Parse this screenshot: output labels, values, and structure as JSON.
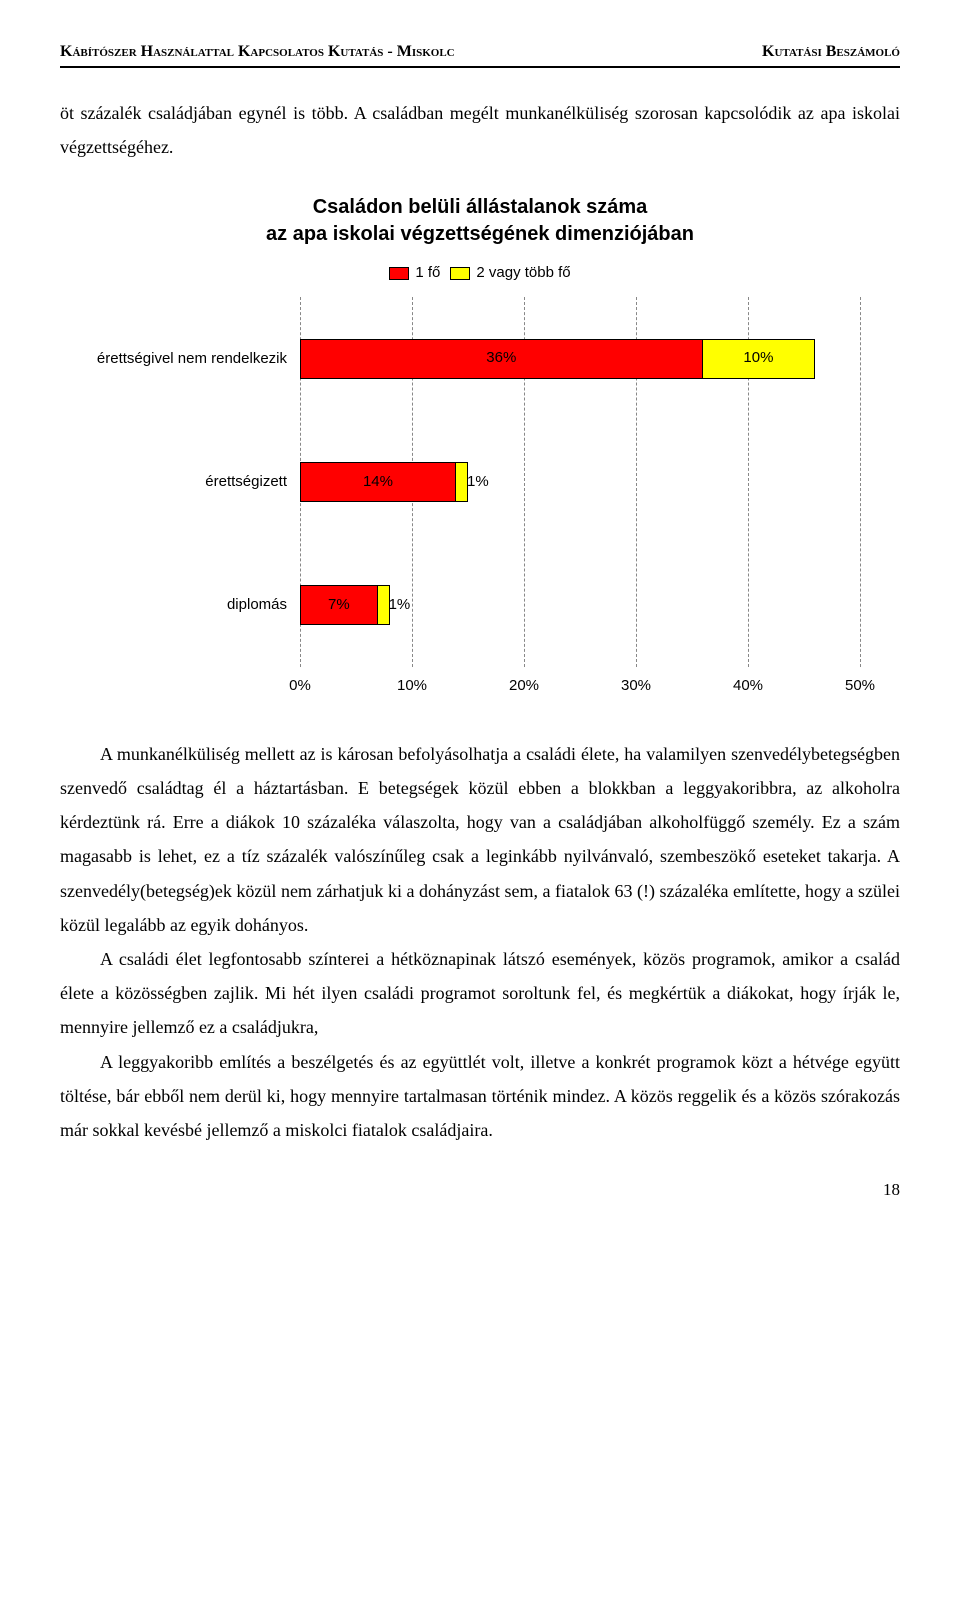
{
  "header": {
    "left": "Kábítószer Használattal Kapcsolatos Kutatás - Miskolc",
    "right": "Kutatási Beszámoló"
  },
  "intro": "öt százalék családjában egynél is több. A családban megélt munkanélküliség szorosan kapcsolódik az apa iskolai végzettségéhez.",
  "chart": {
    "type": "stacked-bar-horizontal",
    "title_line1": "Családon belüli állástalanok száma",
    "title_line2": "az apa iskolai végzettségének dimenziójában",
    "legend": [
      {
        "label": "1 fő",
        "color": "#ff0000"
      },
      {
        "label": "2 vagy több fő",
        "color": "#ffff00"
      }
    ],
    "categories": [
      "érettségivel nem rendelkezik",
      "érettségizett",
      "diplomás"
    ],
    "series": [
      {
        "values": [
          36,
          14,
          7
        ],
        "color": "#ff0000",
        "label_suffix": "%"
      },
      {
        "values": [
          10,
          1,
          1
        ],
        "color": "#ffff00",
        "label_suffix": "%"
      }
    ],
    "xlim": [
      0,
      50
    ],
    "xtick_step": 10,
    "xtick_suffix": "%",
    "bar_border_color": "#000000",
    "grid_color": "#888888",
    "background_color": "#ffffff",
    "label_fontsize": 15,
    "title_fontsize": 20
  },
  "paragraphs": [
    "A munkanélküliség mellett az is károsan befolyásolhatja a családi élete, ha valamilyen szenvedélybetegségben szenvedő családtag él a háztartásban. E betegségek közül ebben a blokkban a leggyakoribbra, az alkoholra kérdeztünk rá. Erre a diákok 10 százaléka válaszolta, hogy van a családjában alkoholfüggő személy. Ez a szám magasabb is lehet, ez a tíz százalék valószínűleg csak a leginkább nyilvánvaló, szembeszökő eseteket takarja. A szenvedély(betegség)ek közül nem zárhatjuk ki a dohányzást sem, a fiatalok 63 (!) százaléka említette, hogy a szülei közül legalább az egyik dohányos.",
    "A családi élet legfontosabb színterei a hétköznapinak látszó események, közös programok, amikor a család élete a közösségben zajlik. Mi hét ilyen családi programot soroltunk fel, és megkértük a diákokat, hogy írják le, mennyire jellemző ez a családjukra,",
    "A leggyakoribb említés a beszélgetés és az együttlét volt, illetve a konkrét programok közt a hétvége együtt töltése, bár ebből nem derül ki, hogy mennyire tartalmasan történik mindez. A közös reggelik és a közös szórakozás már sokkal kevésbé jellemző a miskolci fiatalok családjaira."
  ],
  "page_number": "18"
}
